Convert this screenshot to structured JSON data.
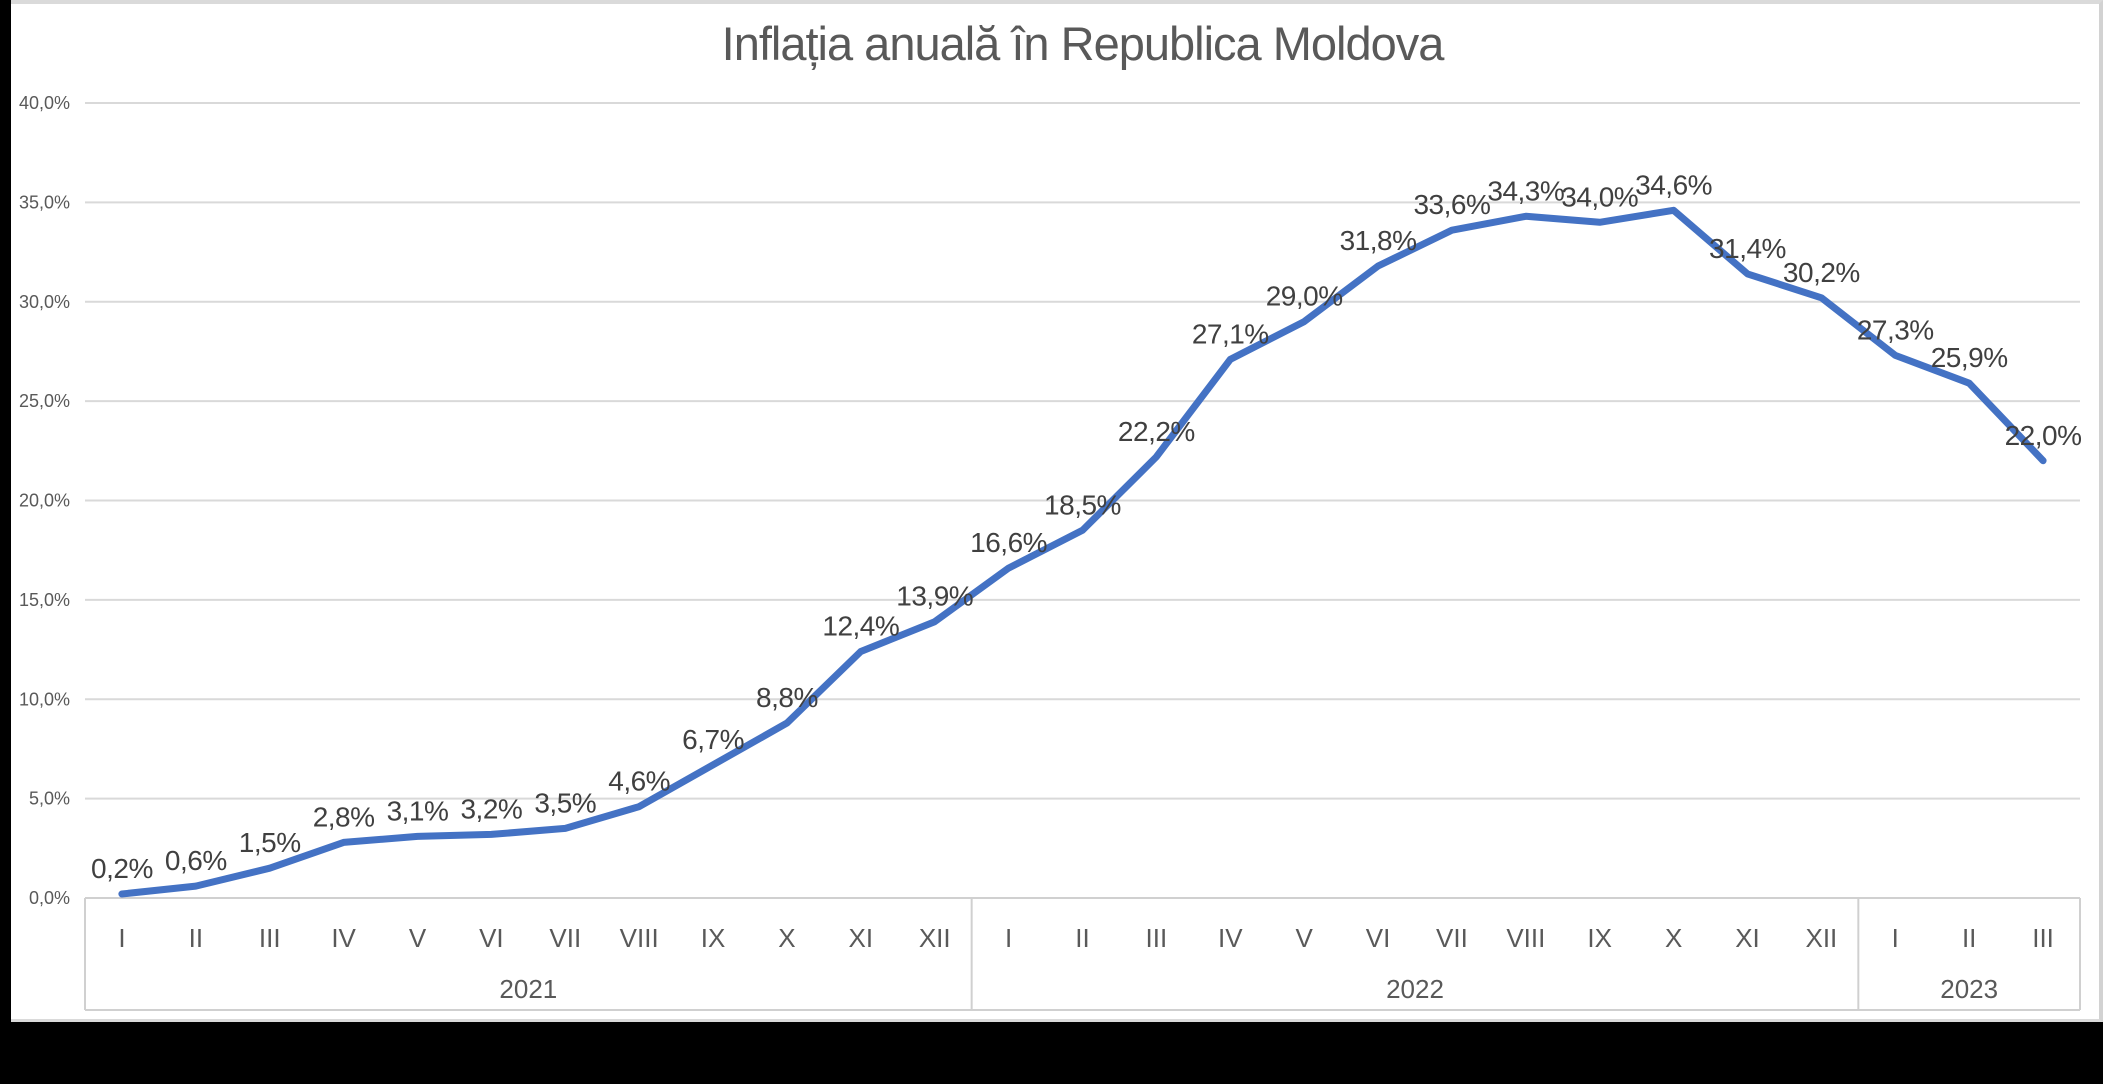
{
  "window": {
    "background": "#000000",
    "surface": "#ffffff"
  },
  "chart_data": {
    "type": "line",
    "title": "Inflația anuală în Republica Moldova",
    "categories": [
      "I",
      "II",
      "III",
      "IV",
      "V",
      "VI",
      "VII",
      "VIII",
      "IX",
      "X",
      "XI",
      "XII",
      "I",
      "II",
      "III",
      "IV",
      "V",
      "VI",
      "VII",
      "VIII",
      "IX",
      "X",
      "XI",
      "XII",
      "I",
      "II",
      "III"
    ],
    "year_groups": [
      {
        "label": "2021",
        "count": 12
      },
      {
        "label": "2022",
        "count": 12
      },
      {
        "label": "2023",
        "count": 3
      }
    ],
    "values": [
      0.2,
      0.6,
      1.5,
      2.8,
      3.1,
      3.2,
      3.5,
      4.6,
      6.7,
      8.8,
      12.4,
      13.9,
      16.6,
      18.5,
      22.2,
      27.1,
      29.0,
      31.8,
      33.6,
      34.3,
      34.0,
      34.6,
      31.4,
      30.2,
      27.3,
      25.9,
      22.0
    ],
    "labels": [
      "0,2%",
      "0,6%",
      "1,5%",
      "2,8%",
      "3,1%",
      "3,2%",
      "3,5%",
      "4,6%",
      "6,7%",
      "8,8%",
      "12,4%",
      "13,9%",
      "16,6%",
      "18,5%",
      "22,2%",
      "27,1%",
      "29,0%",
      "31,8%",
      "33,6%",
      "34,3%",
      "34,0%",
      "34,6%",
      "31,4%",
      "30,2%",
      "27,3%",
      "25,9%",
      "22,0%"
    ],
    "y_axis": {
      "min": 0,
      "max": 40,
      "step": 5,
      "ticks": [
        "0,0%",
        "5,0%",
        "10,0%",
        "15,0%",
        "20,0%",
        "25,0%",
        "30,0%",
        "35,0%",
        "40,0%"
      ]
    },
    "grid": true,
    "legend": "none",
    "colors": {
      "line": "#4472C4",
      "gridline": "#D9D9D9",
      "axis_line": "#D0D0D0",
      "divider": "#D0D0D0",
      "axis_text": "#595959",
      "data_label": "#404040",
      "title": "#595959"
    }
  }
}
